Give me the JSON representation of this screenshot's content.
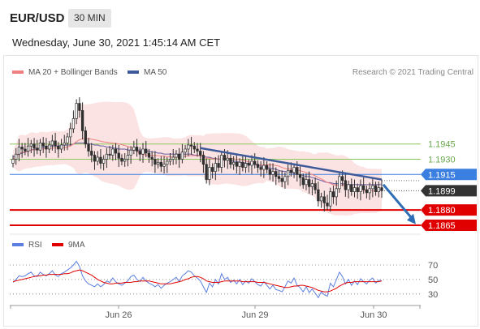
{
  "header": {
    "symbol": "EUR/USD",
    "timeframe": "30 MIN",
    "datetime": "Wednesday, June 30, 2021 1:45:14 AM CET"
  },
  "legend": {
    "ma20": "MA 20 + Bollinger Bands",
    "ma50": "MA 50",
    "credit": "Research © 2021 Trading Central",
    "rsi": "RSI",
    "ma9": "9MA"
  },
  "colors": {
    "candle": "#2f2f2f",
    "ma20": "#f08080",
    "ma50": "#7a6fa8",
    "bollinger": "#fbd9d9",
    "trendline": "#3d5a99",
    "arrow": "#2e6db4",
    "support": "#e00000",
    "resistance_current": "#3b7fe0",
    "target_green": "#8cc85a",
    "price_label": "#333333",
    "rsi_line": "#5b7fe0"
  },
  "chart_data": {
    "type": "candlestick",
    "y_range": [
      1.1857,
      1.2007
    ],
    "x_tick_labels": [
      "Jun 26",
      "Jun 29",
      "Jun 30"
    ],
    "levels": [
      {
        "value": 1.1945,
        "label": "1.1945",
        "style": "target-green"
      },
      {
        "value": 1.193,
        "label": "1.1930",
        "style": "target-green"
      },
      {
        "value": 1.1915,
        "label": "1.1915",
        "style": "resistance"
      },
      {
        "value": 1.1899,
        "label": "1.1899",
        "style": "current"
      },
      {
        "value": 1.188,
        "label": "1.1880",
        "style": "support"
      },
      {
        "value": 1.1865,
        "label": "1.1865",
        "style": "support"
      }
    ],
    "closes": [
      1.193,
      1.1935,
      1.1942,
      1.194,
      1.1938,
      1.1943,
      1.1945,
      1.1941,
      1.1939,
      1.1946,
      1.1943,
      1.194,
      1.1944,
      1.1948,
      1.1943,
      1.194,
      1.1944,
      1.1946,
      1.1952,
      1.196,
      1.197,
      1.1985,
      1.1978,
      1.1958,
      1.1945,
      1.1938,
      1.1934,
      1.1928,
      1.1932,
      1.1926,
      1.193,
      1.1935,
      1.1934,
      1.194,
      1.1936,
      1.1931,
      1.1928,
      1.193,
      1.1934,
      1.1939,
      1.1942,
      1.1938,
      1.1935,
      1.194,
      1.1936,
      1.1932,
      1.193,
      1.1925,
      1.1927,
      1.1923,
      1.1925,
      1.1928,
      1.193,
      1.1932,
      1.1935,
      1.193,
      1.1937,
      1.194,
      1.1944,
      1.1943,
      1.194,
      1.1938,
      1.1934,
      1.1925,
      1.191,
      1.1922,
      1.1918,
      1.1926,
      1.1922,
      1.1934,
      1.1929,
      1.1931,
      1.1925,
      1.1927,
      1.1923,
      1.1927,
      1.1922,
      1.1926,
      1.1924,
      1.1928,
      1.1925,
      1.1922,
      1.192,
      1.1924,
      1.192,
      1.1915,
      1.1918,
      1.1913,
      1.1911,
      1.1908,
      1.1913,
      1.1919,
      1.1917,
      1.1922,
      1.1915,
      1.1912,
      1.1905,
      1.191,
      1.1903,
      1.1906,
      1.19,
      1.1889,
      1.1893,
      1.1887,
      1.1884,
      1.1898,
      1.1893,
      1.1901,
      1.1913,
      1.1909,
      1.19,
      1.1905,
      1.1898,
      1.1902,
      1.1898,
      1.1904,
      1.19,
      1.1897,
      1.1901,
      1.1904,
      1.1898,
      1.1902,
      1.1899
    ],
    "ma50": [
      1.1932,
      1.1934,
      1.1935,
      1.1936,
      1.1937,
      1.1938,
      1.1939,
      1.194,
      1.194,
      1.1941,
      1.1942,
      1.1942,
      1.1943,
      1.1943,
      1.1943,
      1.1943,
      1.1944,
      1.1944,
      1.1944,
      1.1944,
      1.1945,
      1.1946,
      1.1946,
      1.1946,
      1.1946,
      1.1945,
      1.1945,
      1.1944,
      1.1944,
      1.1943,
      1.1943,
      1.1942,
      1.1942,
      1.1941,
      1.1941,
      1.194,
      1.194,
      1.194,
      1.1939,
      1.1939,
      1.1939,
      1.1939,
      1.1939,
      1.1939,
      1.1938,
      1.1938,
      1.1937,
      1.1937,
      1.1936,
      1.1936,
      1.1935,
      1.1935,
      1.1935,
      1.1935,
      1.1935,
      1.1935,
      1.1935,
      1.1935,
      1.1935,
      1.1935,
      1.1934,
      1.1934,
      1.1933,
      1.1933,
      1.1932,
      1.1932,
      1.1931,
      1.1931,
      1.193,
      1.193,
      1.193,
      1.1929,
      1.1929,
      1.1928,
      1.1928,
      1.1927,
      1.1927,
      1.1926,
      1.1926,
      1.1925,
      1.1925,
      1.1924,
      1.1923,
      1.1923,
      1.1922,
      1.1921,
      1.1921,
      1.192,
      1.1919,
      1.1918,
      1.1918,
      1.1917,
      1.1917,
      1.1916,
      1.1915,
      1.1915,
      1.1914,
      1.1913,
      1.1913,
      1.1912,
      1.1911,
      1.191,
      1.1909,
      1.1908,
      1.1907,
      1.1907,
      1.1906,
      1.1906,
      1.1906,
      1.1906,
      1.1905,
      1.1905,
      1.1905,
      1.1905,
      1.1905,
      1.1905,
      1.1905,
      1.1905,
      1.1905,
      1.1905,
      1.1905,
      1.1905,
      1.1905
    ],
    "trendline": {
      "from_index": 62,
      "from_value": 1.1941,
      "to_index": 122,
      "to_value": 1.191
    },
    "forecast_arrow": {
      "from_value": 1.1905,
      "to_value": 1.1866
    },
    "rsi": {
      "y_range": [
        22,
        80
      ],
      "ticks": [
        70,
        50,
        30
      ],
      "values": [
        46,
        50,
        55,
        54,
        55,
        58,
        60,
        55,
        54,
        60,
        57,
        55,
        58,
        62,
        56,
        54,
        58,
        60,
        63,
        66,
        70,
        75,
        68,
        55,
        48,
        44,
        42,
        40,
        44,
        40,
        43,
        48,
        46,
        52,
        47,
        44,
        42,
        45,
        48,
        54,
        56,
        50,
        47,
        53,
        48,
        45,
        43,
        40,
        43,
        38,
        42,
        45,
        47,
        50,
        53,
        47,
        55,
        58,
        62,
        60,
        55,
        52,
        48,
        40,
        32,
        45,
        40,
        50,
        44,
        58,
        50,
        53,
        46,
        49,
        44,
        50,
        43,
        48,
        45,
        51,
        47,
        43,
        41,
        47,
        42,
        37,
        42,
        36,
        35,
        33,
        40,
        48,
        45,
        52,
        42,
        39,
        33,
        40,
        32,
        37,
        31,
        25,
        33,
        29,
        27,
        45,
        40,
        50,
        60,
        54,
        44,
        50,
        42,
        48,
        43,
        51,
        47,
        44,
        49,
        52,
        45,
        49,
        48
      ],
      "ma9": [
        47,
        48,
        49,
        50,
        51,
        52,
        53,
        54,
        55,
        55,
        56,
        56,
        57,
        57,
        57,
        57,
        57,
        58,
        58,
        59,
        61,
        62,
        63,
        62,
        60,
        58,
        56,
        53,
        50,
        48,
        46,
        45,
        44,
        44,
        45,
        45,
        45,
        46,
        46,
        46,
        47,
        47,
        48,
        48,
        48,
        48,
        47,
        46,
        45,
        44,
        44,
        44,
        44,
        45,
        46,
        47,
        48,
        50,
        51,
        53,
        54,
        54,
        53,
        51,
        48,
        47,
        46,
        46,
        46,
        47,
        48,
        48,
        48,
        48,
        48,
        48,
        47,
        47,
        47,
        47,
        47,
        46,
        46,
        46,
        45,
        44,
        43,
        42,
        41,
        40,
        39,
        39,
        40,
        41,
        41,
        42,
        42,
        41,
        40,
        39,
        37,
        35,
        34,
        33,
        33,
        34,
        36,
        38,
        41,
        43,
        45,
        46,
        46,
        47,
        47,
        47,
        47,
        47,
        47,
        47,
        47,
        47,
        48
      ]
    }
  }
}
